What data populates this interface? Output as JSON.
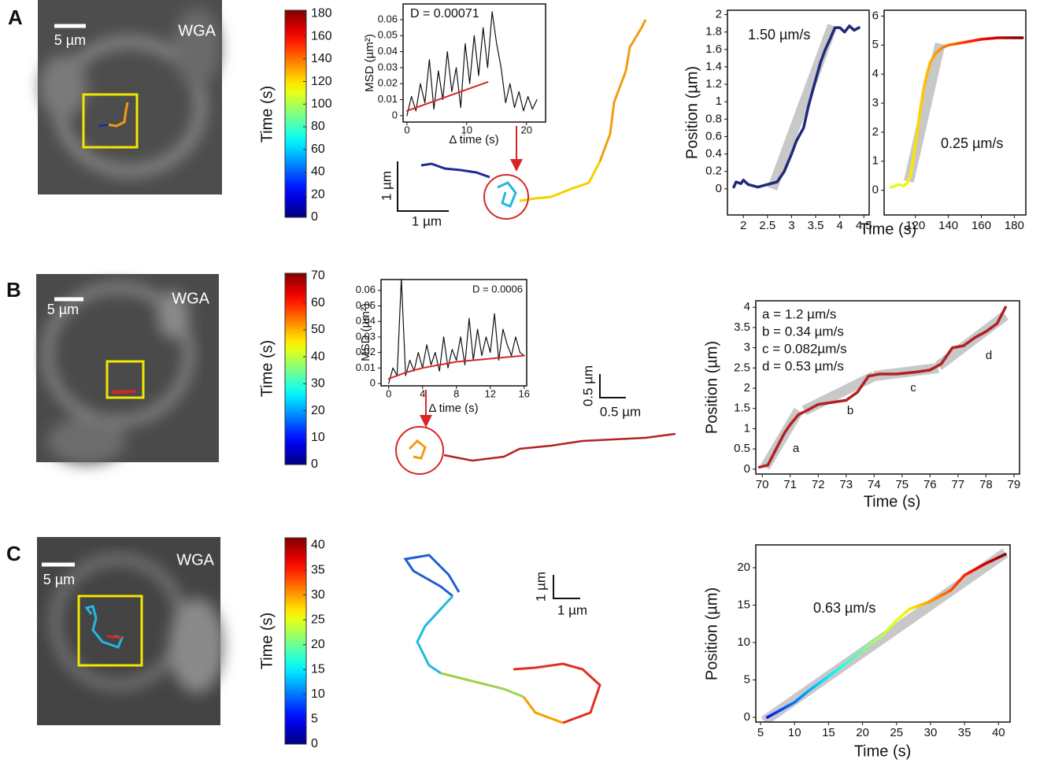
{
  "panels": [
    {
      "label": "A",
      "image_label": "WGA",
      "image_scale": "5 µm",
      "track_scale_y": "1 µm",
      "track_scale_x": "1 µm"
    },
    {
      "label": "B",
      "image_label": "WGA",
      "image_scale": "5 µm",
      "track_scale_y": "0.5 µm",
      "track_scale_x": "0.5 µm"
    },
    {
      "label": "C",
      "image_label": "WGA",
      "image_scale": "5 µm",
      "track_scale_y": "1 µm",
      "track_scale_x": "1 µm"
    }
  ],
  "chart_data": [
    {
      "type": "colorbar",
      "colormap": "jet",
      "ylabel": "Time (s)",
      "ylim": [
        0,
        183
      ],
      "yticks": [
        0,
        20,
        40,
        60,
        80,
        100,
        120,
        140,
        160,
        180
      ]
    },
    {
      "type": "line",
      "ylabel": "MSD (µm²)",
      "xlabel": "Δ time (s)",
      "annotations": [
        "D = 0.00071"
      ],
      "xlim": [
        -0.65,
        23.2
      ],
      "xticks": [
        0,
        10,
        20
      ],
      "ylim": [
        -0.004,
        0.0698
      ],
      "yticks": [
        0,
        0.01,
        0.02,
        0.03,
        0.04,
        0.05,
        0.06
      ],
      "series": [
        {
          "color": "#111111",
          "x": [
            0,
            0.75,
            1.5,
            2.25,
            3,
            3.75,
            4.5,
            5.25,
            6,
            6.75,
            7.5,
            8.25,
            9,
            9.75,
            10.5,
            11.25,
            12,
            12.75,
            13.5,
            14.25,
            15,
            15.75,
            16.5,
            17.25,
            18,
            18.75,
            19.5,
            20.25,
            21,
            21.75
          ],
          "values": [
            0,
            0.012,
            0.003,
            0.02,
            0.008,
            0.035,
            0.004,
            0.028,
            0.01,
            0.04,
            0.015,
            0.03,
            0.005,
            0.045,
            0.02,
            0.05,
            0.025,
            0.055,
            0.03,
            0.065,
            0.045,
            0.03,
            0.008,
            0.02,
            0.005,
            0.015,
            0.003,
            0.012,
            0.004,
            0.01
          ]
        },
        {
          "color": "#d62728",
          "x": [
            0,
            13.5
          ],
          "values": [
            0.003,
            0.021
          ]
        }
      ]
    },
    {
      "type": "line",
      "ylabel": "Position (µm)",
      "annotations": [
        "1.50 µm/s"
      ],
      "xlim": [
        1.67,
        4.61
      ],
      "xticks": [
        2,
        2.5,
        3,
        3.5,
        4,
        4.5
      ],
      "ylim": [
        -0.3,
        2.05
      ],
      "yticks": [
        0,
        0.2,
        0.4,
        0.6,
        0.8,
        1,
        1.2,
        1.4,
        1.6,
        1.8,
        2
      ],
      "series": [
        {
          "color": "#c8c8c8",
          "style": "fit",
          "x": [
            2.6,
            3.85
          ],
          "values": [
            0,
            1.875
          ]
        },
        {
          "color": "#1f2a7a",
          "x": [
            1.8,
            1.85,
            1.95,
            2.0,
            2.1,
            2.3,
            2.5,
            2.7,
            2.85,
            3.0,
            3.1,
            3.25,
            3.35,
            3.5,
            3.6,
            3.7,
            3.8,
            3.9,
            4.0,
            4.1,
            4.2,
            4.3,
            4.4
          ],
          "values": [
            0.02,
            0.08,
            0.06,
            0.1,
            0.05,
            0.02,
            0.05,
            0.08,
            0.2,
            0.4,
            0.55,
            0.7,
            0.95,
            1.25,
            1.45,
            1.6,
            1.72,
            1.85,
            1.85,
            1.8,
            1.87,
            1.82,
            1.85
          ]
        }
      ]
    },
    {
      "type": "line",
      "xlabel": "Time (s)",
      "annotations": [
        "0.25 µm/s"
      ],
      "xlim": [
        101,
        187
      ],
      "xticks": [
        120,
        140,
        160,
        180
      ],
      "ylim": [
        -0.85,
        6.2
      ],
      "yticks": [
        0,
        1,
        2,
        3,
        4,
        5,
        6
      ],
      "series": [
        {
          "color": "#c8c8c8",
          "style": "fit",
          "x": [
            116,
            135
          ],
          "values": [
            0.3,
            5.05
          ]
        },
        {
          "colormap": "jet",
          "x": [
            105,
            110,
            113,
            115,
            117,
            119,
            121,
            123,
            125,
            127,
            129,
            132,
            136,
            140,
            150,
            160,
            170,
            180,
            185
          ],
          "values": [
            0.1,
            0.2,
            0.15,
            0.25,
            0.5,
            1.2,
            2.0,
            2.8,
            3.5,
            4.0,
            4.4,
            4.7,
            4.9,
            5.0,
            5.1,
            5.2,
            5.25,
            5.25,
            5.25
          ]
        }
      ]
    },
    {
      "type": "colorbar",
      "colormap": "jet",
      "ylabel": "Time (s)",
      "ylim": [
        0,
        71
      ],
      "yticks": [
        0,
        10,
        20,
        30,
        40,
        50,
        60,
        70
      ]
    },
    {
      "type": "line",
      "ylabel": "MSD (µm²)",
      "xlabel": "Δ time (s)",
      "annotations": [
        "D = 0.0006"
      ],
      "xlim": [
        -0.9,
        16.3
      ],
      "xticks": [
        0,
        4,
        8,
        12,
        16
      ],
      "ylim": [
        -0.0015,
        0.067
      ],
      "yticks": [
        0,
        0.01,
        0.02,
        0.03,
        0.04,
        0.05,
        0.06
      ],
      "series": [
        {
          "color": "#111111",
          "x": [
            0,
            0.5,
            1,
            1.5,
            2,
            2.5,
            3,
            3.5,
            4,
            4.5,
            5,
            5.5,
            6,
            6.5,
            7,
            7.5,
            8,
            8.5,
            9,
            9.5,
            10,
            10.5,
            11,
            11.5,
            12,
            12.5,
            13,
            13.5,
            14,
            14.5,
            15,
            15.5,
            16
          ],
          "values": [
            0,
            0.01,
            0.005,
            0.068,
            0.005,
            0.015,
            0.008,
            0.02,
            0.01,
            0.025,
            0.012,
            0.02,
            0.008,
            0.03,
            0.01,
            0.022,
            0.015,
            0.03,
            0.012,
            0.042,
            0.015,
            0.035,
            0.018,
            0.03,
            0.02,
            0.045,
            0.015,
            0.035,
            0.025,
            0.018,
            0.03,
            0.02,
            0.018
          ]
        },
        {
          "color": "#d62728",
          "x": [
            0,
            2,
            4,
            6,
            8,
            10,
            12,
            14,
            16
          ],
          "values": [
            0.003,
            0.007,
            0.01,
            0.012,
            0.014,
            0.015,
            0.016,
            0.017,
            0.018
          ]
        }
      ]
    },
    {
      "type": "line",
      "ylabel": "Position (µm)",
      "xlabel": "Time (s)",
      "annotations": [
        "a = 1.2 µm/s",
        "b = 0.34 µm/s",
        "c = 0.082µm/s",
        "d = 0.53 µm/s",
        "a",
        "b",
        "c",
        "d"
      ],
      "xlim": [
        69.77,
        79.2
      ],
      "xticks": [
        70,
        71,
        72,
        73,
        74,
        75,
        76,
        77,
        78,
        79
      ],
      "ylim": [
        -0.12,
        4.16
      ],
      "yticks": [
        0,
        0.5,
        1,
        1.5,
        2,
        2.5,
        3,
        3.5,
        4
      ],
      "series": [
        {
          "color": "#c8c8c8",
          "style": "fit",
          "x": [
            70.1,
            71.3
          ],
          "values": [
            0.05,
            1.45
          ]
        },
        {
          "color": "#c8c8c8",
          "style": "fit",
          "x": [
            71.5,
            74
          ],
          "values": [
            1.45,
            2.3
          ]
        },
        {
          "color": "#c8c8c8",
          "style": "fit",
          "x": [
            74,
            76.3
          ],
          "values": [
            2.3,
            2.5
          ]
        },
        {
          "color": "#c8c8c8",
          "style": "fit",
          "x": [
            76.3,
            78.7
          ],
          "values": [
            2.55,
            3.8
          ]
        },
        {
          "color": "#b22222",
          "x": [
            69.9,
            70.2,
            70.5,
            70.8,
            71,
            71.3,
            71.6,
            72,
            72.5,
            73,
            73.4,
            73.8,
            74.2,
            74.8,
            75.5,
            76,
            76.4,
            76.8,
            77.2,
            77.6,
            78,
            78.4,
            78.7
          ],
          "values": [
            0.05,
            0.1,
            0.5,
            0.9,
            1.1,
            1.35,
            1.45,
            1.6,
            1.65,
            1.7,
            1.9,
            2.3,
            2.35,
            2.35,
            2.4,
            2.45,
            2.6,
            3.0,
            3.05,
            3.25,
            3.4,
            3.6,
            4.0
          ]
        }
      ]
    },
    {
      "type": "colorbar",
      "colormap": "jet",
      "ylabel": "Time (s)",
      "ylim": [
        0,
        41.5
      ],
      "yticks": [
        0,
        5,
        10,
        15,
        20,
        25,
        30,
        35,
        40
      ]
    },
    {
      "type": "line",
      "ylabel": "Position (µm)",
      "xlabel": "Time (s)",
      "annotations": [
        "0.63 µm/s"
      ],
      "xlim": [
        4.3,
        41.7
      ],
      "xticks": [
        5,
        10,
        15,
        20,
        25,
        30,
        35,
        40
      ],
      "ylim": [
        -0.63,
        23.05
      ],
      "yticks": [
        0,
        5,
        10,
        15,
        20
      ],
      "series": [
        {
          "color": "#c8c8c8",
          "style": "fit",
          "x": [
            5.5,
            41
          ],
          "values": [
            -0.5,
            22
          ]
        },
        {
          "colormap": "jet",
          "x": [
            6,
            8,
            10,
            12,
            15,
            18,
            20,
            23,
            25,
            27,
            30,
            33,
            35,
            38,
            41
          ],
          "values": [
            0,
            1,
            2,
            3.5,
            5.5,
            7.5,
            9,
            11,
            13,
            14.5,
            15.5,
            17,
            19,
            20.5,
            21.8
          ]
        }
      ]
    }
  ]
}
